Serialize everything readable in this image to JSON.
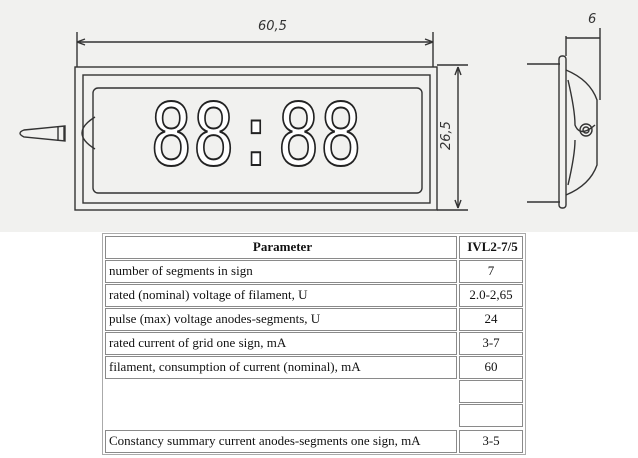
{
  "drawing": {
    "width_dimension": "60,5",
    "height_dimension": "26,5",
    "depth_dimension": "6",
    "display_digits": "88:88"
  },
  "table": {
    "headers": [
      "Parameter",
      "IVL2-7/5"
    ],
    "rows": [
      [
        "number of segments in sign",
        "7"
      ],
      [
        "rated (nominal) voltage of filament, U",
        "2.0-2,65"
      ],
      [
        "pulse (max) voltage anodes-segments, U",
        "24"
      ],
      [
        "rated current of grid one sign, mA",
        "3-7"
      ],
      [
        "filament, consumption of current (nominal), mA",
        "60"
      ],
      [
        "",
        ""
      ],
      [
        "",
        ""
      ],
      [
        "Constancy summary current anodes-segments one sign, mA",
        "3-5"
      ]
    ]
  }
}
